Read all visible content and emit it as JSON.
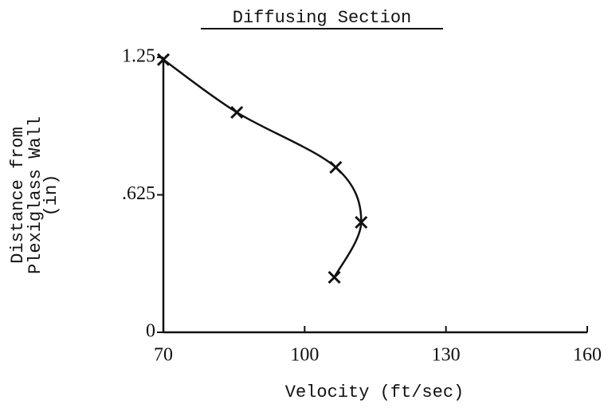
{
  "chart_data": {
    "type": "line",
    "title": "Diffusing Section",
    "xlabel": "Velocity (ft/sec)",
    "ylabel": [
      "Distance from",
      "Plexiglass Wall",
      "(in)"
    ],
    "x": [
      70,
      85.6,
      106.6,
      112,
      106.3
    ],
    "values": [
      1.24,
      1.0,
      0.75,
      0.5,
      0.25
    ],
    "color": "#111111",
    "xlim": [
      70,
      160
    ],
    "xticks": [
      70,
      100,
      130,
      160
    ],
    "ylim": [
      0,
      1.25
    ],
    "yticks": [
      0,
      {
        "value": 0.625,
        "label": ".625"
      },
      1.25
    ],
    "grid": false
  }
}
